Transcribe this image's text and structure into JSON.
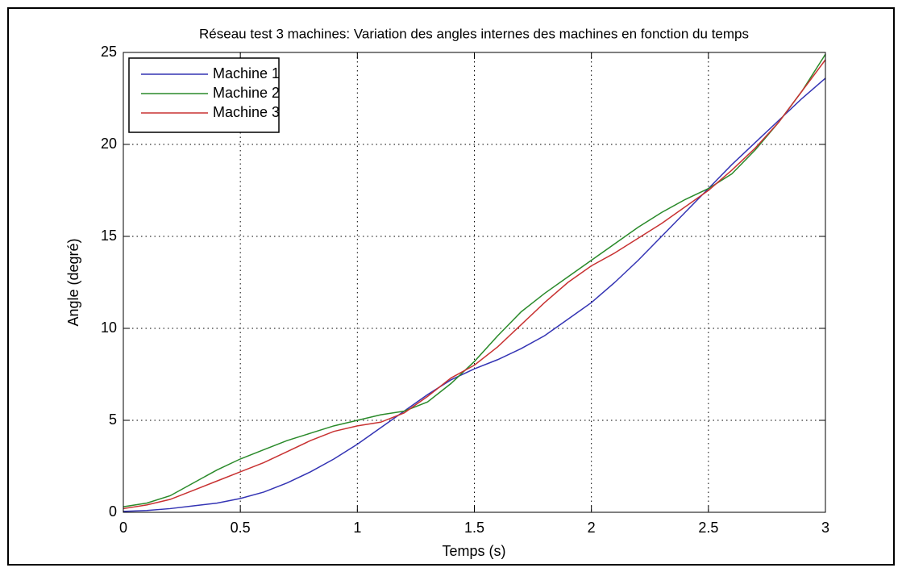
{
  "chart_data": {
    "type": "line",
    "title": "Réseau test 3 machines: Variation des angles internes des machines en fonction du temps",
    "x_label": "Temps (s)",
    "y_label": "Angle (degré)",
    "x": [
      0,
      0.1,
      0.2,
      0.3,
      0.4,
      0.5,
      0.6,
      0.7,
      0.8,
      0.9,
      1.0,
      1.1,
      1.2,
      1.3,
      1.4,
      1.5,
      1.6,
      1.7,
      1.8,
      1.9,
      2.0,
      2.1,
      2.2,
      2.3,
      2.4,
      2.5,
      2.6,
      2.7,
      2.8,
      2.9,
      3.0
    ],
    "series": [
      {
        "name": "Machine 1",
        "color": "#3434b4",
        "values": [
          0.05,
          0.1,
          0.2,
          0.35,
          0.5,
          0.75,
          1.1,
          1.6,
          2.2,
          2.9,
          3.7,
          4.6,
          5.5,
          6.4,
          7.2,
          7.8,
          8.3,
          8.9,
          9.6,
          10.5,
          11.4,
          12.5,
          13.7,
          15.0,
          16.3,
          17.6,
          18.9,
          20.1,
          21.3,
          22.5,
          23.6
        ]
      },
      {
        "name": "Machine 2",
        "color": "#2a8a2a",
        "values": [
          0.3,
          0.5,
          0.9,
          1.6,
          2.3,
          2.9,
          3.4,
          3.9,
          4.3,
          4.7,
          5.0,
          5.3,
          5.5,
          6.0,
          7.0,
          8.2,
          9.6,
          10.9,
          11.9,
          12.8,
          13.7,
          14.6,
          15.5,
          16.3,
          17.0,
          17.6,
          18.4,
          19.7,
          21.2,
          22.9,
          24.9
        ]
      },
      {
        "name": "Machine 3",
        "color": "#c83232",
        "values": [
          0.2,
          0.4,
          0.7,
          1.2,
          1.7,
          2.2,
          2.7,
          3.3,
          3.9,
          4.4,
          4.7,
          4.9,
          5.4,
          6.3,
          7.3,
          8.0,
          9.0,
          10.2,
          11.4,
          12.5,
          13.4,
          14.1,
          14.9,
          15.7,
          16.6,
          17.5,
          18.6,
          19.8,
          21.2,
          22.9,
          24.6
        ]
      }
    ],
    "xlim": [
      0,
      3
    ],
    "xticks": [
      0,
      0.5,
      1,
      1.5,
      2,
      2.5,
      3
    ],
    "ylim": [
      0,
      25
    ],
    "yticks": [
      0,
      5,
      10,
      15,
      20,
      25
    ],
    "grid": true,
    "legend": "northwest"
  }
}
